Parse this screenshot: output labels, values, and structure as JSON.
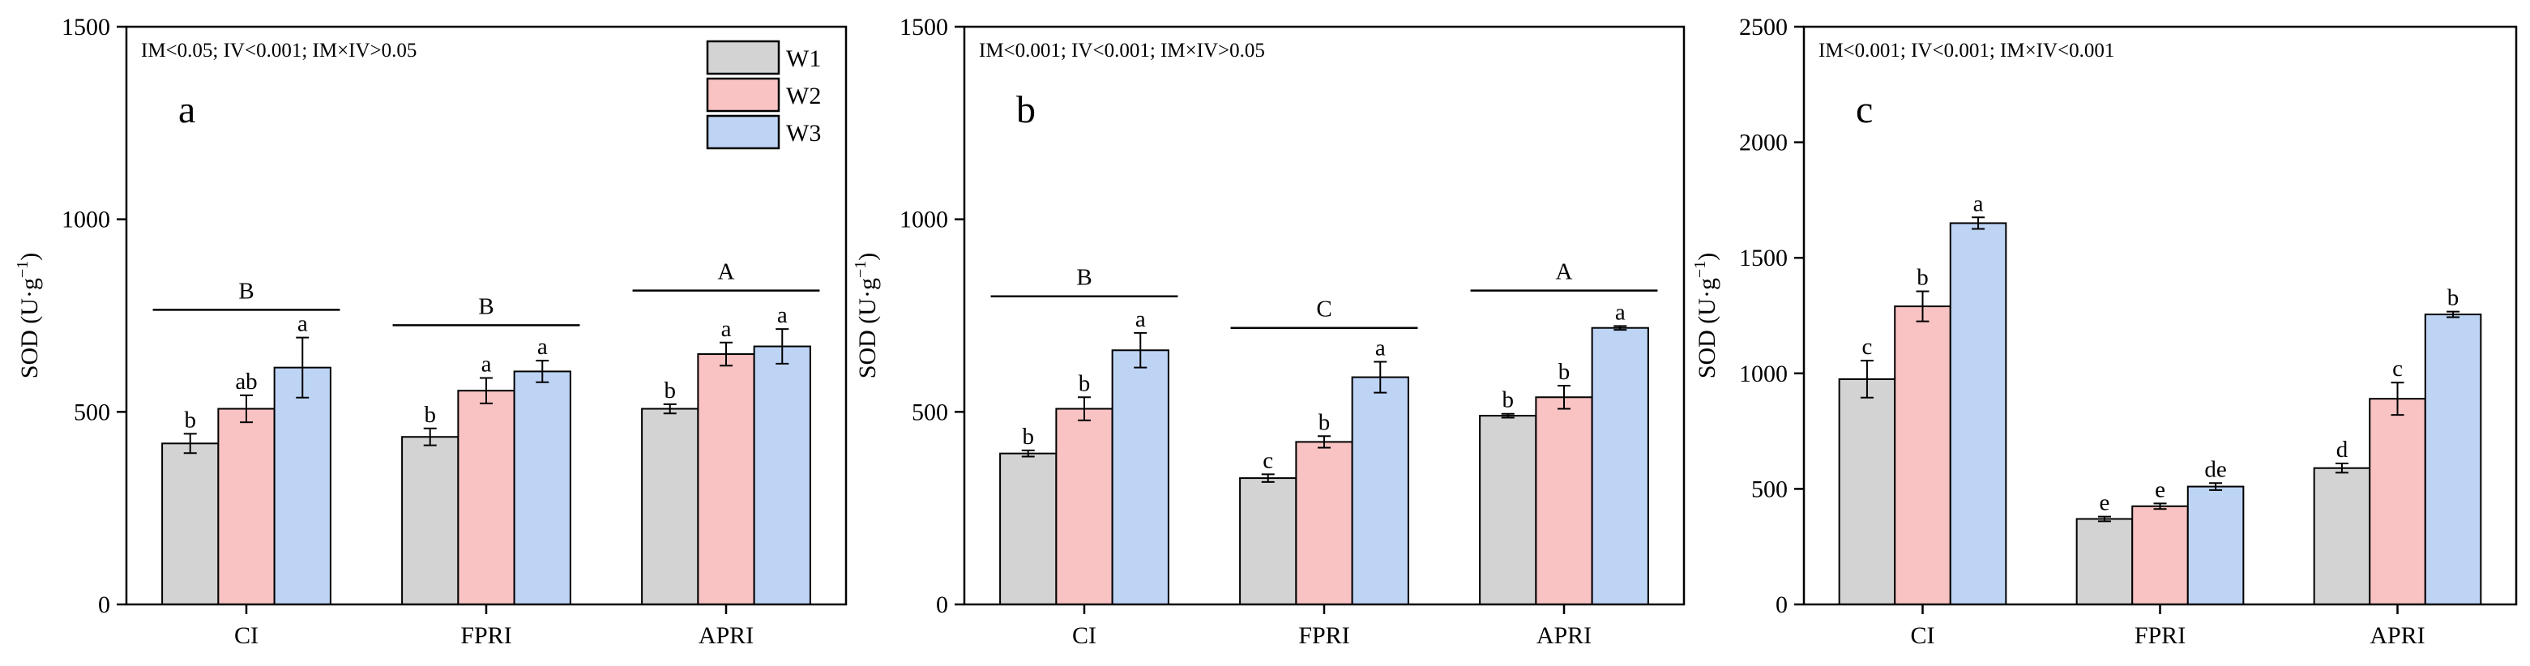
{
  "colors": {
    "W1": "#d3d3d3",
    "W2": "#f9c3c3",
    "W3": "#bdd4f5",
    "stroke": "#000000"
  },
  "legend": [
    "W1",
    "W2",
    "W3"
  ],
  "chart_data": [
    {
      "type": "bar",
      "panel": "a",
      "stats": "IM<0.05; IV<0.001; IM×IV>0.05",
      "ylabel": "SOD (U·g⁻¹)",
      "ylabel_base": "SOD (U·g",
      "ylabel_sup": "−1",
      "ylabel_close": ")",
      "ylim": [
        0,
        1500
      ],
      "yticks": [
        "0",
        "500",
        "1000",
        "1500"
      ],
      "categories": [
        "CI",
        "FPRI",
        "APRI"
      ],
      "series": [
        {
          "name": "W1",
          "values": [
            418,
            435,
            508
          ],
          "errors": [
            25,
            22,
            12
          ],
          "letters": [
            "b",
            "b",
            "b"
          ]
        },
        {
          "name": "W2",
          "values": [
            508,
            555,
            650
          ],
          "errors": [
            35,
            33,
            30
          ],
          "letters": [
            "ab",
            "a",
            "a"
          ]
        },
        {
          "name": "W3",
          "values": [
            615,
            605,
            670
          ],
          "errors": [
            78,
            28,
            45
          ],
          "letters": [
            "a",
            "a",
            "a"
          ]
        }
      ],
      "group_letters": [
        "B",
        "B",
        "A"
      ],
      "group_line_values": [
        765,
        725,
        815
      ],
      "show_legend": true
    },
    {
      "type": "bar",
      "panel": "b",
      "stats": "IM<0.001; IV<0.001; IM×IV>0.05",
      "ylabel": "SOD (U·g⁻¹)",
      "ylabel_base": "SOD (U·g",
      "ylabel_sup": "−1",
      "ylabel_close": ")",
      "ylim": [
        0,
        1500
      ],
      "yticks": [
        "0",
        "500",
        "1000",
        "1500"
      ],
      "categories": [
        "CI",
        "FPRI",
        "APRI"
      ],
      "series": [
        {
          "name": "W1",
          "values": [
            392,
            328,
            490
          ],
          "errors": [
            8,
            10,
            5
          ],
          "letters": [
            "b",
            "c",
            "b"
          ]
        },
        {
          "name": "W2",
          "values": [
            508,
            422,
            538
          ],
          "errors": [
            30,
            15,
            30
          ],
          "letters": [
            "b",
            "b",
            "b"
          ]
        },
        {
          "name": "W3",
          "values": [
            660,
            590,
            718
          ],
          "errors": [
            45,
            40,
            5
          ],
          "letters": [
            "a",
            "a",
            "a"
          ]
        }
      ],
      "group_letters": [
        "B",
        "C",
        "A"
      ],
      "group_line_values": [
        800,
        718,
        815
      ],
      "show_legend": false
    },
    {
      "type": "bar",
      "panel": "c",
      "stats": "IM<0.001; IV<0.001; IM×IV<0.001",
      "ylabel": "SOD (U·g⁻¹)",
      "ylabel_base": "SOD (U·g",
      "ylabel_sup": "−1",
      "ylabel_close": ")",
      "ylim": [
        0,
        2500
      ],
      "yticks": [
        "0",
        "500",
        "1000",
        "1500",
        "2000",
        "2500"
      ],
      "categories": [
        "CI",
        "FPRI",
        "APRI"
      ],
      "series": [
        {
          "name": "W1",
          "values": [
            975,
            370,
            590
          ],
          "errors": [
            80,
            10,
            20
          ],
          "letters": [
            "c",
            "e",
            "d"
          ]
        },
        {
          "name": "W2",
          "values": [
            1290,
            425,
            890
          ],
          "errors": [
            65,
            12,
            70
          ],
          "letters": [
            "b",
            "e",
            "c"
          ]
        },
        {
          "name": "W3",
          "values": [
            1650,
            510,
            1255
          ],
          "errors": [
            25,
            15,
            12
          ],
          "letters": [
            "a",
            "de",
            "b"
          ]
        }
      ],
      "group_letters": [],
      "group_line_values": [],
      "show_legend": false
    }
  ]
}
